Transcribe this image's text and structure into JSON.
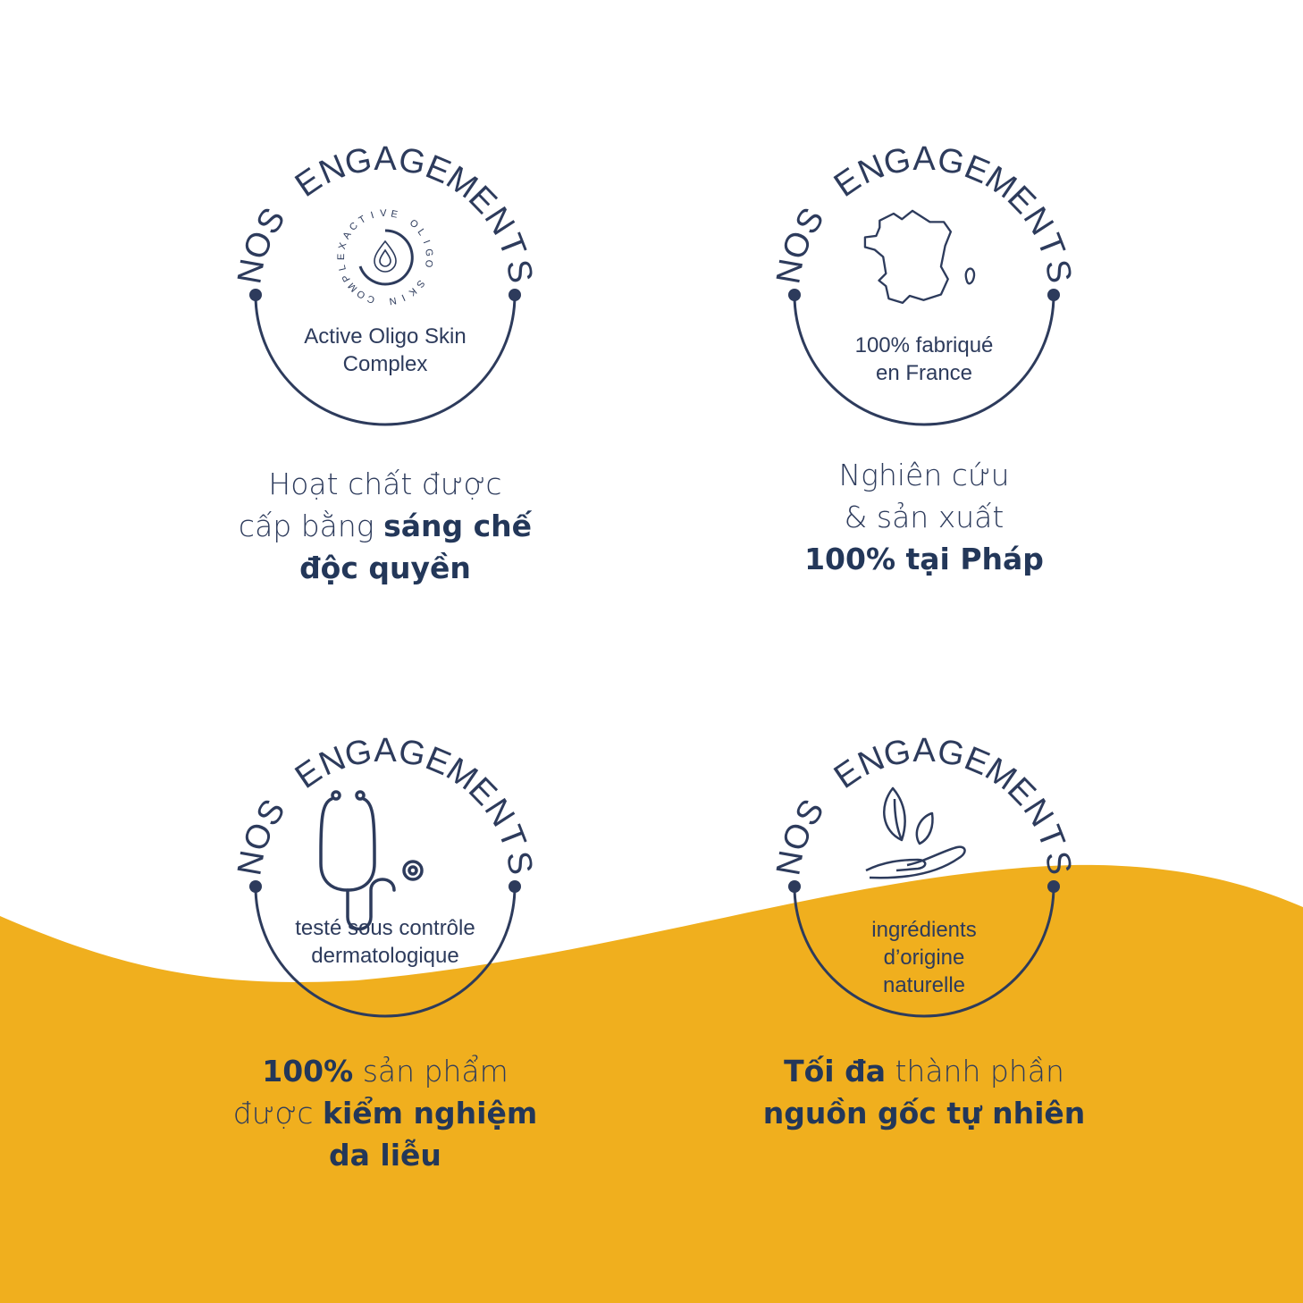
{
  "colors": {
    "navy": "#2d3b5c",
    "yellow": "#f0af1e",
    "background": "#ffffff"
  },
  "arc_title": "NOS ENGAGEMENTS",
  "badges": [
    {
      "icon": "oligo-drop-icon",
      "inner_ring_text": "ACTIVE OLIGO SKIN COMPLEX",
      "label_lines": [
        "Active Oligo Skin",
        "Complex"
      ],
      "caption": [
        [
          {
            "t": "Hoạt chất được",
            "b": false
          }
        ],
        [
          {
            "t": "cấp bằng ",
            "b": false
          },
          {
            "t": "sáng chế",
            "b": true
          }
        ],
        [
          {
            "t": "độc quyền",
            "b": true
          }
        ]
      ]
    },
    {
      "icon": "france-map-icon",
      "label_lines": [
        "100% fabriqué",
        "en France"
      ],
      "caption": [
        [
          {
            "t": "Nghiên cứu",
            "b": false
          }
        ],
        [
          {
            "t": "& sản xuất",
            "b": false
          }
        ],
        [
          {
            "t": "100% tại Pháp",
            "b": true
          }
        ]
      ]
    },
    {
      "icon": "stethoscope-icon",
      "label_lines": [
        "testé sous contrôle",
        "dermatologique"
      ],
      "caption": [
        [
          {
            "t": "100%",
            "b": true
          },
          {
            "t": " sản phẩm",
            "b": false
          }
        ],
        [
          {
            "t": "được ",
            "b": false
          },
          {
            "t": "kiểm nghiệm",
            "b": true
          }
        ],
        [
          {
            "t": "da liễu",
            "b": true
          }
        ]
      ]
    },
    {
      "icon": "leaf-in-hand-icon",
      "label_lines": [
        "ingrédients",
        "d’origine",
        "naturelle"
      ],
      "caption": [
        [
          {
            "t": "Tối đa",
            "b": true
          },
          {
            "t": " thành phần",
            "b": false
          }
        ],
        [
          {
            "t": "nguồn gốc tự nhiên",
            "b": true
          }
        ]
      ]
    }
  ]
}
